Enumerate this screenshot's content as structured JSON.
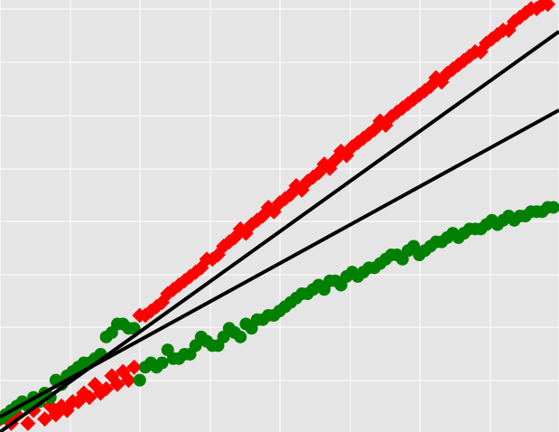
{
  "chart_data": {
    "type": "scatter",
    "title": "",
    "xlabel": "",
    "ylabel": "",
    "xlim": [
      0,
      100
    ],
    "ylim": [
      0,
      100
    ],
    "grid": true,
    "colors": {
      "background": "#e5e5e5",
      "grid": "#ffffff",
      "red_series": "#ff0000",
      "green_series": "#008000",
      "fit_lines": "#000000"
    },
    "series": [
      {
        "marker": "diamond",
        "color": "#ff0000",
        "points": [
          [
            0,
            3
          ],
          [
            2,
            2
          ],
          [
            3,
            4
          ],
          [
            5,
            2
          ],
          [
            6,
            5
          ],
          [
            8,
            3
          ],
          [
            9,
            6
          ],
          [
            10,
            4
          ],
          [
            11,
            6
          ],
          [
            12,
            5
          ],
          [
            13,
            7
          ],
          [
            14,
            7
          ],
          [
            15,
            9
          ],
          [
            16,
            8
          ],
          [
            17,
            11
          ],
          [
            18,
            9
          ],
          [
            19,
            10
          ],
          [
            20,
            13
          ],
          [
            21,
            11
          ],
          [
            22,
            14
          ],
          [
            23,
            12
          ],
          [
            24,
            15
          ],
          [
            25,
            27
          ],
          [
            26,
            27
          ],
          [
            27,
            28
          ],
          [
            28,
            29
          ],
          [
            29,
            30
          ],
          [
            30,
            32
          ],
          [
            31,
            33
          ],
          [
            32,
            34
          ],
          [
            33,
            35
          ],
          [
            34,
            36
          ],
          [
            35,
            37
          ],
          [
            36,
            38
          ],
          [
            37,
            40
          ],
          [
            38,
            40
          ],
          [
            39,
            41
          ],
          [
            40,
            43
          ],
          [
            41,
            44
          ],
          [
            42,
            45
          ],
          [
            43,
            47
          ],
          [
            44,
            46
          ],
          [
            45,
            48
          ],
          [
            46,
            49
          ],
          [
            47,
            50
          ],
          [
            48,
            52
          ],
          [
            49,
            51
          ],
          [
            50,
            53
          ],
          [
            51,
            54
          ],
          [
            52,
            55
          ],
          [
            53,
            57
          ],
          [
            54,
            56
          ],
          [
            55,
            58
          ],
          [
            56,
            59
          ],
          [
            57,
            60
          ],
          [
            58,
            62
          ],
          [
            59,
            61
          ],
          [
            60,
            63
          ],
          [
            61,
            65
          ],
          [
            62,
            64
          ],
          [
            63,
            66
          ],
          [
            64,
            67
          ],
          [
            65,
            68
          ],
          [
            66,
            69
          ],
          [
            67,
            70
          ],
          [
            68,
            72
          ],
          [
            69,
            71
          ],
          [
            70,
            73
          ],
          [
            71,
            74
          ],
          [
            72,
            75
          ],
          [
            73,
            76
          ],
          [
            74,
            77
          ],
          [
            75,
            78
          ],
          [
            76,
            79
          ],
          [
            77,
            80
          ],
          [
            78,
            82
          ],
          [
            79,
            81
          ],
          [
            80,
            83
          ],
          [
            81,
            84
          ],
          [
            82,
            85
          ],
          [
            83,
            86
          ],
          [
            84,
            87
          ],
          [
            85,
            88
          ],
          [
            86,
            88
          ],
          [
            87,
            90
          ],
          [
            88,
            91
          ],
          [
            89,
            92
          ],
          [
            90,
            93
          ],
          [
            91,
            93
          ],
          [
            92,
            95
          ],
          [
            93,
            96
          ],
          [
            94,
            97
          ],
          [
            95,
            98
          ],
          [
            96,
            98
          ],
          [
            97,
            99
          ],
          [
            98,
            99
          ]
        ]
      },
      {
        "marker": "circle",
        "color": "#008000",
        "points": [
          [
            0,
            3
          ],
          [
            1,
            4
          ],
          [
            2,
            5
          ],
          [
            3,
            6
          ],
          [
            4,
            7
          ],
          [
            5,
            6
          ],
          [
            6,
            8
          ],
          [
            7,
            7
          ],
          [
            8,
            9
          ],
          [
            9,
            8
          ],
          [
            10,
            12
          ],
          [
            11,
            11
          ],
          [
            12,
            13
          ],
          [
            13,
            14
          ],
          [
            14,
            15
          ],
          [
            15,
            16
          ],
          [
            16,
            16
          ],
          [
            17,
            17
          ],
          [
            18,
            18
          ],
          [
            19,
            22
          ],
          [
            20,
            23
          ],
          [
            21,
            25
          ],
          [
            22,
            25
          ],
          [
            23,
            24
          ],
          [
            24,
            24
          ],
          [
            25,
            12
          ],
          [
            26,
            15
          ],
          [
            27,
            16
          ],
          [
            28,
            15
          ],
          [
            29,
            16
          ],
          [
            30,
            19
          ],
          [
            31,
            17
          ],
          [
            32,
            17
          ],
          [
            33,
            18
          ],
          [
            34,
            18
          ],
          [
            35,
            20
          ],
          [
            36,
            22
          ],
          [
            37,
            21
          ],
          [
            38,
            20
          ],
          [
            39,
            20
          ],
          [
            40,
            22
          ],
          [
            41,
            24
          ],
          [
            42,
            23
          ],
          [
            43,
            22
          ],
          [
            44,
            25
          ],
          [
            45,
            24
          ],
          [
            46,
            26
          ],
          [
            47,
            26
          ],
          [
            48,
            27
          ],
          [
            49,
            27
          ],
          [
            50,
            28
          ],
          [
            51,
            29
          ],
          [
            52,
            30
          ],
          [
            53,
            31
          ],
          [
            54,
            32
          ],
          [
            55,
            32
          ],
          [
            56,
            33
          ],
          [
            57,
            34
          ],
          [
            58,
            33
          ],
          [
            59,
            35
          ],
          [
            60,
            35
          ],
          [
            61,
            34
          ],
          [
            62,
            36
          ],
          [
            63,
            37
          ],
          [
            64,
            36
          ],
          [
            65,
            37
          ],
          [
            66,
            38
          ],
          [
            67,
            38
          ],
          [
            68,
            39
          ],
          [
            69,
            40
          ],
          [
            70,
            41
          ],
          [
            71,
            41
          ],
          [
            72,
            40
          ],
          [
            73,
            42
          ],
          [
            74,
            43
          ],
          [
            75,
            41
          ],
          [
            76,
            42
          ],
          [
            77,
            43
          ],
          [
            78,
            44
          ],
          [
            79,
            44
          ],
          [
            80,
            45
          ],
          [
            81,
            46
          ],
          [
            82,
            45
          ],
          [
            83,
            46
          ],
          [
            84,
            47
          ],
          [
            85,
            47
          ],
          [
            86,
            47
          ],
          [
            87,
            48
          ],
          [
            88,
            49
          ],
          [
            89,
            48
          ],
          [
            90,
            49
          ],
          [
            91,
            50
          ],
          [
            92,
            49
          ],
          [
            93,
            50
          ],
          [
            94,
            50
          ],
          [
            95,
            51
          ],
          [
            96,
            51
          ],
          [
            97,
            51
          ],
          [
            98,
            52
          ],
          [
            99,
            52
          ]
        ]
      }
    ],
    "lines": [
      {
        "x": [
          0,
          100
        ],
        "y": [
          0,
          92.7
        ],
        "color": "#000000"
      },
      {
        "x": [
          0,
          100
        ],
        "y": [
          3.5,
          74.5
        ],
        "color": "#000000"
      }
    ]
  }
}
